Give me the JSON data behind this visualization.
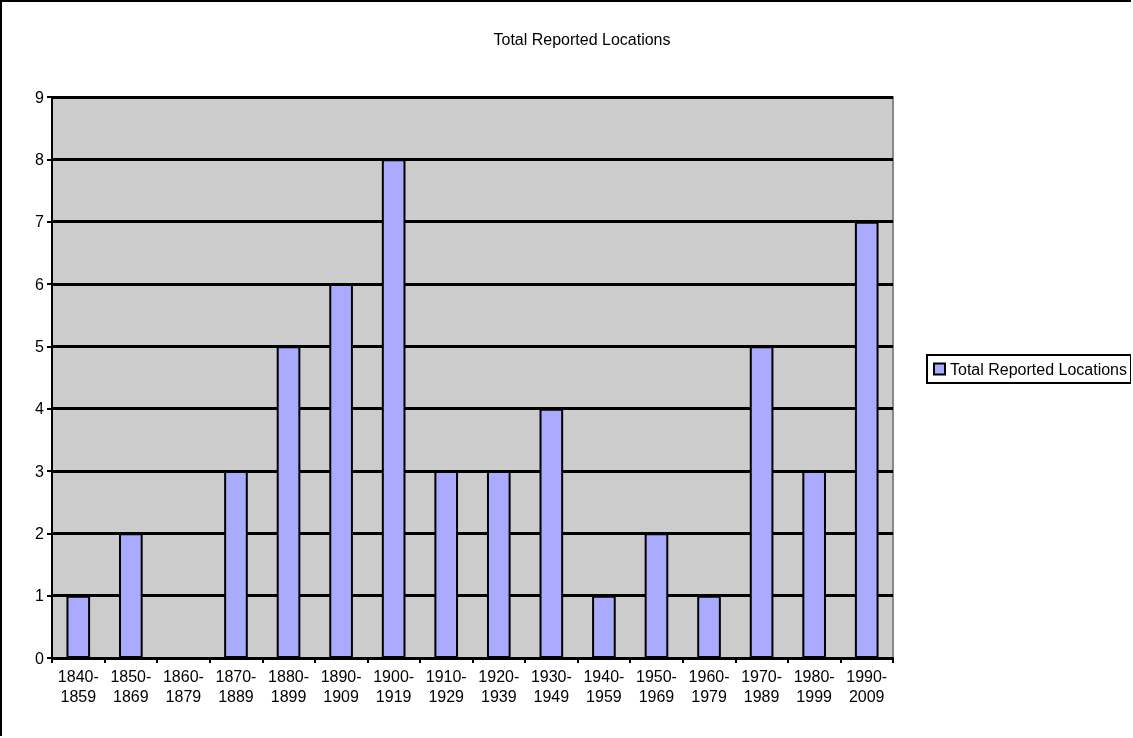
{
  "chart_data": {
    "type": "bar",
    "title": "Total Reported Locations",
    "categories": [
      "1840-1859",
      "1850-1869",
      "1860-1879",
      "1870-1889",
      "1880-1899",
      "1890-1909",
      "1900-1919",
      "1910-1929",
      "1920-1939",
      "1930-1949",
      "1940-1959",
      "1950-1969",
      "1960-1979",
      "1970-1989",
      "1980-1999",
      "1990-2009"
    ],
    "series": [
      {
        "name": "Total Reported Locations",
        "color": "#aaaaff",
        "values": [
          1,
          2,
          0,
          3,
          5,
          6,
          8,
          3,
          3,
          4,
          1,
          2,
          1,
          5,
          3,
          7
        ]
      }
    ],
    "ylim": [
      0,
      9
    ],
    "yticks": [
      0,
      1,
      2,
      3,
      4,
      5,
      6,
      7,
      8,
      9
    ],
    "grid": "y",
    "legend": "right"
  }
}
